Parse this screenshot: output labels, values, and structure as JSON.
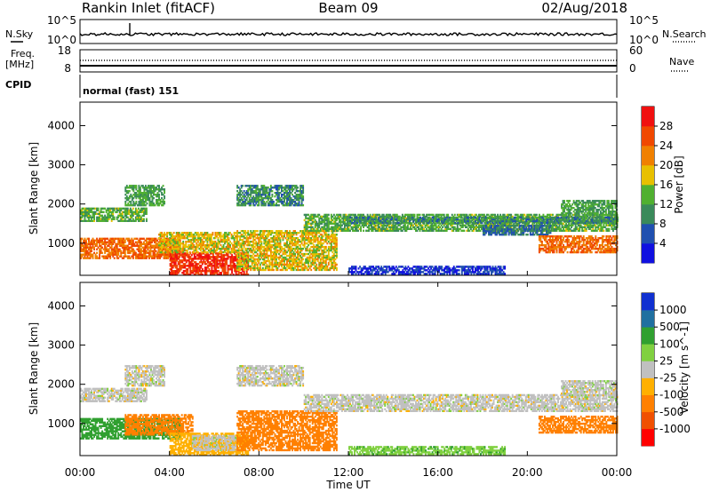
{
  "header": {
    "station": "Rankin Inlet (fitACF)",
    "beam": "Beam 09",
    "date": "02/Aug/2018"
  },
  "top_panels": {
    "nsky_label": "N.Sky",
    "nsky_ticks": [
      "10^5",
      "10^0"
    ],
    "nsearch_label": "N.Search",
    "nsearch_ticks": [
      "10^5",
      "10^0"
    ],
    "freq_label": "Freq.",
    "freq_unit": "[MHz]",
    "freq_ticks": [
      "18",
      "8"
    ],
    "nave_label": "Nave",
    "nave_ticks": [
      "60",
      "0"
    ],
    "cpid_label": "CPID",
    "cpid_value": "normal (fast) 151"
  },
  "colors": {
    "power_scale": [
      "#1010e0",
      "#2050b0",
      "#3a8a5a",
      "#50b030",
      "#e8c000",
      "#f08000",
      "#f04800",
      "#f01010"
    ],
    "velocity_scale": [
      "#ff0000",
      "#f05000",
      "#ff8000",
      "#ffb000",
      "#c0c0c0",
      "#80d040",
      "#30a030",
      "#2070a0",
      "#1030d0"
    ]
  },
  "chart_data": [
    {
      "type": "heatmap",
      "panel": "power",
      "ylabel": "Slant Range [km]",
      "colorbar_label": "Power [dB]",
      "colorbar_ticks": [
        "28",
        "24",
        "20",
        "16",
        "12",
        "8",
        "4"
      ],
      "ylim": [
        180,
        4600
      ],
      "yticks": [
        "4000",
        "3000",
        "2000",
        "1000"
      ],
      "xlim": [
        0,
        24
      ],
      "grid": false,
      "bands": [
        {
          "t0": 0.0,
          "t1": 3.0,
          "r0": 1550,
          "r1": 1900,
          "v": 13
        },
        {
          "t0": 2.0,
          "t1": 3.8,
          "r0": 1950,
          "r1": 2450,
          "v": 12
        },
        {
          "t0": 0.0,
          "t1": 4.5,
          "r0": 600,
          "r1": 1100,
          "v": 24
        },
        {
          "t0": 4.0,
          "t1": 7.5,
          "r0": 180,
          "r1": 750,
          "v": 28
        },
        {
          "t0": 3.5,
          "t1": 7.0,
          "r0": 750,
          "r1": 1250,
          "v": 18
        },
        {
          "t0": 7.0,
          "t1": 10.0,
          "r0": 1950,
          "r1": 2450,
          "v": 10
        },
        {
          "t0": 7.0,
          "t1": 11.5,
          "r0": 300,
          "r1": 1300,
          "v": 18
        },
        {
          "t0": 10.0,
          "t1": 24.0,
          "r0": 1300,
          "r1": 1750,
          "v": 13
        },
        {
          "t0": 12.0,
          "t1": 24.0,
          "r0": 1500,
          "r1": 1650,
          "v": 10
        },
        {
          "t0": 18.0,
          "t1": 21.0,
          "r0": 1200,
          "r1": 1450,
          "v": 8
        },
        {
          "t0": 20.5,
          "t1": 24.0,
          "r0": 750,
          "r1": 1200,
          "v": 24
        },
        {
          "t0": 21.5,
          "t1": 24.0,
          "r0": 1700,
          "r1": 2100,
          "v": 12
        },
        {
          "t0": 12.0,
          "t1": 19.0,
          "r0": 200,
          "r1": 400,
          "v": 4
        }
      ]
    },
    {
      "type": "heatmap",
      "panel": "velocity",
      "ylabel": "Slant Range [km]",
      "colorbar_label": "Velocity [m s^-1]",
      "colorbar_ticks": [
        "1000",
        "500",
        "100",
        "25",
        "-25",
        "-100",
        "-500",
        "-1000"
      ],
      "ylim": [
        180,
        4600
      ],
      "yticks": [
        "4000",
        "3000",
        "2000",
        "1000"
      ],
      "xlim": [
        0,
        24
      ],
      "xticks": [
        "00:00",
        "04:00",
        "08:00",
        "12:00",
        "16:00",
        "20:00",
        "00:00"
      ],
      "xlabel": "Time UT",
      "grid": false,
      "bands": [
        {
          "t0": 0.0,
          "t1": 3.0,
          "r0": 1550,
          "r1": 1900,
          "v": 0
        },
        {
          "t0": 2.0,
          "t1": 3.8,
          "r0": 1950,
          "r1": 2450,
          "v": 0
        },
        {
          "t0": 0.0,
          "t1": 4.5,
          "r0": 600,
          "r1": 1100,
          "v": 150
        },
        {
          "t0": 2.0,
          "t1": 5.0,
          "r0": 700,
          "r1": 1200,
          "v": -300
        },
        {
          "t0": 4.0,
          "t1": 7.5,
          "r0": 180,
          "r1": 750,
          "v": -60
        },
        {
          "t0": 5.0,
          "t1": 7.0,
          "r0": 300,
          "r1": 700,
          "v": 0
        },
        {
          "t0": 7.0,
          "t1": 10.0,
          "r0": 1950,
          "r1": 2450,
          "v": 0
        },
        {
          "t0": 7.0,
          "t1": 11.5,
          "r0": 300,
          "r1": 1300,
          "v": -300
        },
        {
          "t0": 10.0,
          "t1": 24.0,
          "r0": 1300,
          "r1": 1750,
          "v": 0
        },
        {
          "t0": 20.5,
          "t1": 24.0,
          "r0": 750,
          "r1": 1200,
          "v": -300
        },
        {
          "t0": 21.5,
          "t1": 24.0,
          "r0": 1700,
          "r1": 2100,
          "v": 0
        },
        {
          "t0": 12.0,
          "t1": 19.0,
          "r0": 200,
          "r1": 400,
          "v": 80
        }
      ]
    }
  ]
}
